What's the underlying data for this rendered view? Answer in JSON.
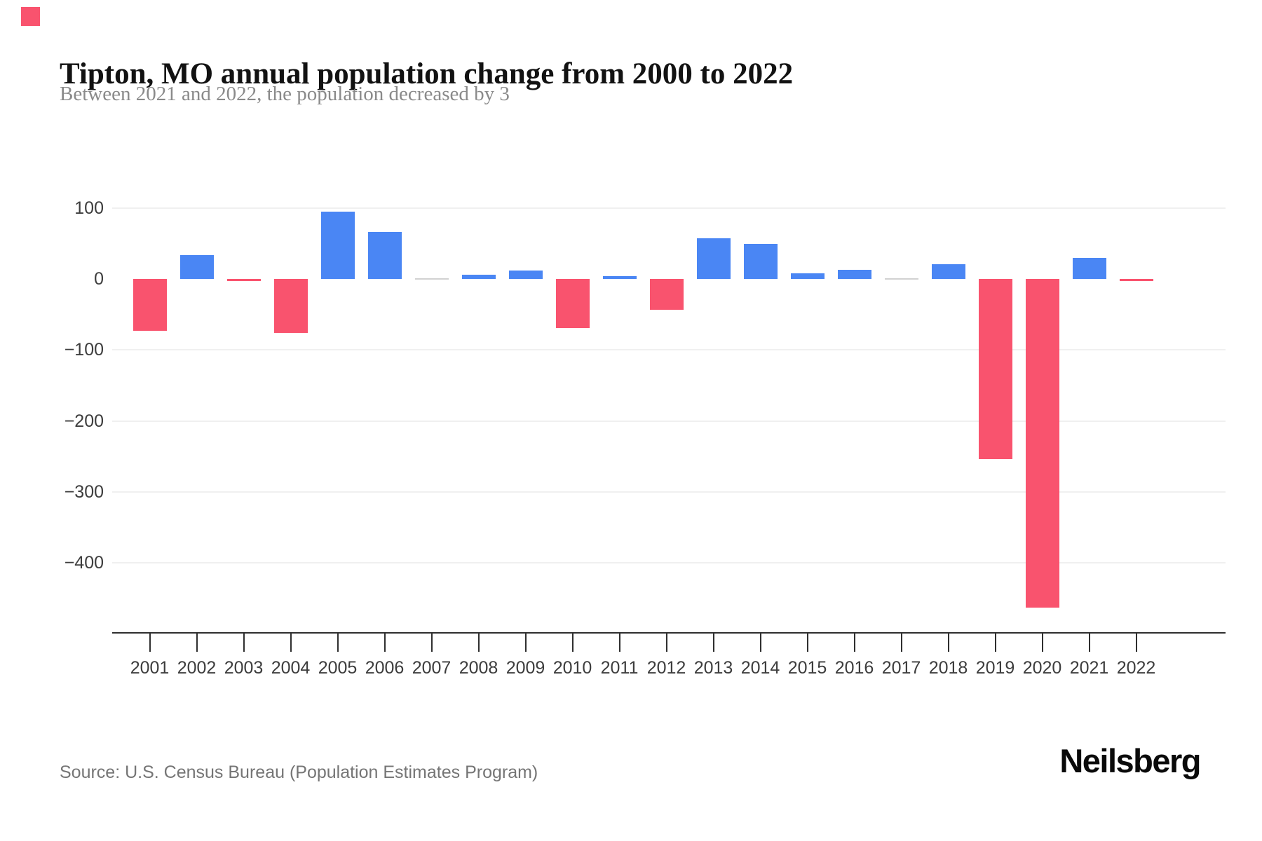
{
  "page": {
    "title": "Tipton, MO annual population change from 2000 to 2022",
    "subtitle": "Between 2021 and 2022, the population decreased by 3",
    "source": "Source: U.S. Census Bureau (Population Estimates Program)",
    "brand": "Neilsberg",
    "accent_color": "#f9536e"
  },
  "chart_data": {
    "type": "bar",
    "title": "Tipton, MO annual population change from 2000 to 2022",
    "subtitle": "Between 2021 and 2022, the population decreased by 3",
    "categories": [
      "2001",
      "2002",
      "2003",
      "2004",
      "2005",
      "2006",
      "2007",
      "2008",
      "2009",
      "2010",
      "2011",
      "2012",
      "2013",
      "2014",
      "2015",
      "2016",
      "2017",
      "2018",
      "2019",
      "2020",
      "2021",
      "2022"
    ],
    "values": [
      -73,
      34,
      -3,
      -76,
      95,
      66,
      0,
      6,
      12,
      -69,
      4,
      -43,
      57,
      49,
      8,
      13,
      0,
      21,
      -254,
      -463,
      30,
      -3
    ],
    "series_label": "Annual population change",
    "ylabel": "",
    "xlabel": "",
    "ylim": [
      -500,
      100
    ],
    "y_ticks": [
      100,
      0,
      -100,
      -200,
      -300,
      -400
    ],
    "grid": "horizontal-light",
    "legend": "none",
    "colors": {
      "positive": "#4a86f4",
      "negative": "#f9536e",
      "zero": "#d2d2d2",
      "gridline": "#f0f0f0",
      "axis": "#2f2f2f"
    }
  }
}
